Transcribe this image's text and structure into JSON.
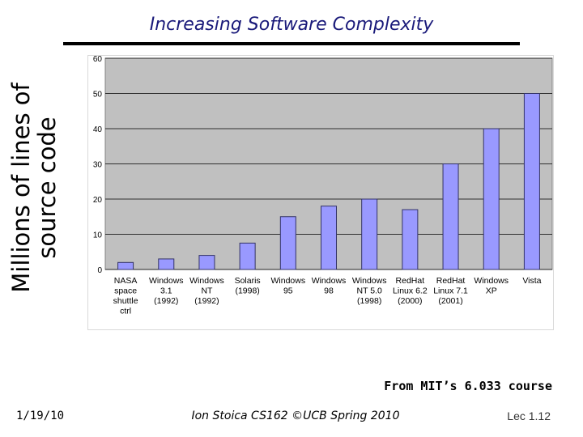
{
  "slide": {
    "title": "Increasing Software Complexity",
    "source_note": "From MIT’s 6.033 course",
    "footer_date": "1/19/10",
    "footer_center": "Ion Stoica CS162 ©UCB Spring 2010",
    "footer_lecture": "Lec 1.12"
  },
  "colors": {
    "title": "#1a1a7a",
    "plot_background": "#c0c0c0",
    "bar_fill": "#9999ff",
    "bar_stroke": "#333366"
  },
  "chart_data": {
    "type": "bar",
    "ylabel": "Millions of lines of source code",
    "categories": [
      [
        "NASA",
        "space",
        "shuttle",
        "ctrl"
      ],
      [
        "Windows",
        "3.1",
        "(1992)"
      ],
      [
        "Windows",
        "NT",
        "(1992)"
      ],
      [
        "Solaris",
        "(1998)"
      ],
      [
        "Windows",
        "95"
      ],
      [
        "Windows",
        "98"
      ],
      [
        "Windows",
        "NT 5.0",
        "(1998)"
      ],
      [
        "RedHat",
        "Linux 6.2",
        "(2000)"
      ],
      [
        "RedHat",
        "Linux 7.1",
        "(2001)"
      ],
      [
        "Windows",
        "XP"
      ],
      [
        "Vista"
      ]
    ],
    "values": [
      2,
      3,
      4,
      7.5,
      15,
      18,
      20,
      17,
      30,
      40,
      50
    ],
    "ylim": [
      0,
      60
    ],
    "yticks": [
      0,
      10,
      20,
      30,
      40,
      50,
      60
    ],
    "grid": true,
    "legend": "none"
  }
}
